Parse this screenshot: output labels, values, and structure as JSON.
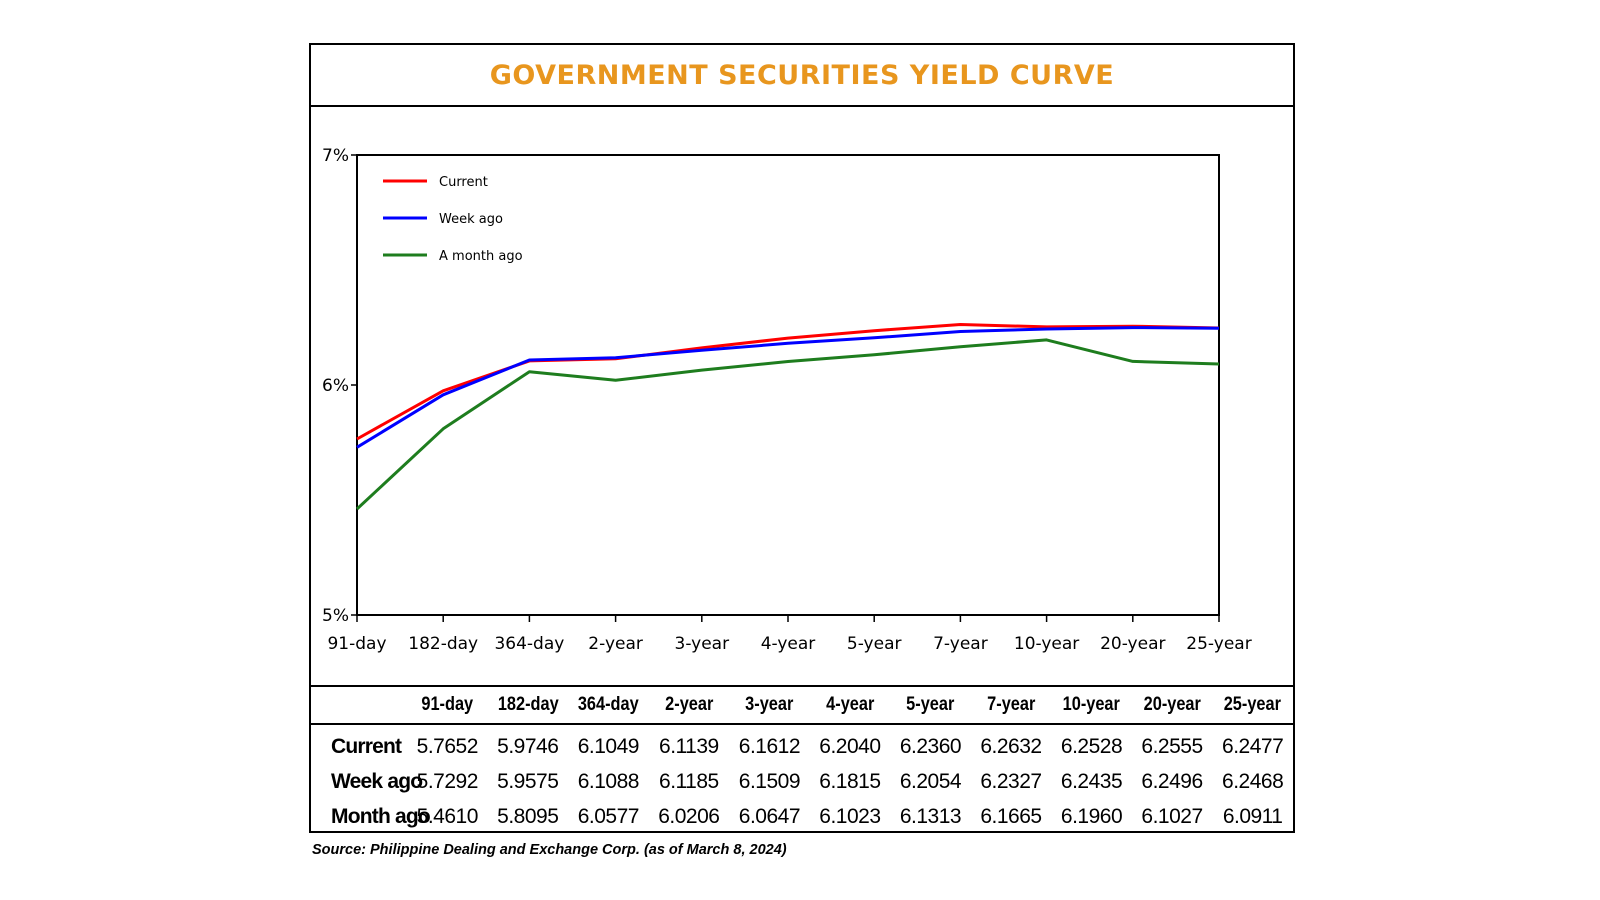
{
  "colors": {
    "title": "#e8961e",
    "current": "#ff0000",
    "week_ago": "#0000ff",
    "month_ago": "#1e7d1e"
  },
  "chart_data": {
    "type": "line",
    "title": "GOVERNMENT SECURITIES YIELD CURVE",
    "categories": [
      "91-day",
      "182-day",
      "364-day",
      "2-year",
      "3-year",
      "4-year",
      "5-year",
      "7-year",
      "10-year",
      "20-year",
      "25-year"
    ],
    "ylim": [
      5,
      7
    ],
    "yticks": [
      "5%",
      "6%",
      "7%"
    ],
    "grid": false,
    "legend_position": "top-left",
    "series": [
      {
        "name": "Current",
        "color": "#ff0000",
        "values": [
          5.7652,
          5.9746,
          6.1049,
          6.1139,
          6.1612,
          6.204,
          6.236,
          6.2632,
          6.2528,
          6.2555,
          6.2477
        ]
      },
      {
        "name": "Week ago",
        "color": "#0000ff",
        "values": [
          5.7292,
          5.9575,
          6.1088,
          6.1185,
          6.1509,
          6.1815,
          6.2054,
          6.2327,
          6.2435,
          6.2496,
          6.2468
        ]
      },
      {
        "name": "A month ago",
        "color": "#1e7d1e",
        "values": [
          5.461,
          5.8095,
          6.0577,
          6.0206,
          6.0647,
          6.1023,
          6.1313,
          6.1665,
          6.196,
          6.1027,
          6.0911
        ]
      }
    ]
  },
  "table": {
    "headers": [
      "91-day",
      "182-day",
      "364-day",
      "2-year",
      "3-year",
      "4-year",
      "5-year",
      "7-year",
      "10-year",
      "20-year",
      "25-year"
    ],
    "rows": [
      {
        "label": "Current",
        "values": [
          "5.7652",
          "5.9746",
          "6.1049",
          "6.1139",
          "6.1612",
          "6.2040",
          "6.2360",
          "6.2632",
          "6.2528",
          "6.2555",
          "6.2477"
        ]
      },
      {
        "label": "Week ago",
        "values": [
          "5.7292",
          "5.9575",
          "6.1088",
          "6.1185",
          "6.1509",
          "6.1815",
          "6.2054",
          "6.2327",
          "6.2435",
          "6.2496",
          "6.2468"
        ]
      },
      {
        "label": "Month ago",
        "values": [
          "5.4610",
          "5.8095",
          "6.0577",
          "6.0206",
          "6.0647",
          "6.1023",
          "6.1313",
          "6.1665",
          "6.1960",
          "6.1027",
          "6.0911"
        ]
      }
    ]
  },
  "source": "Source: Philippine Dealing and Exchange Corp. (as of March 8, 2024)"
}
